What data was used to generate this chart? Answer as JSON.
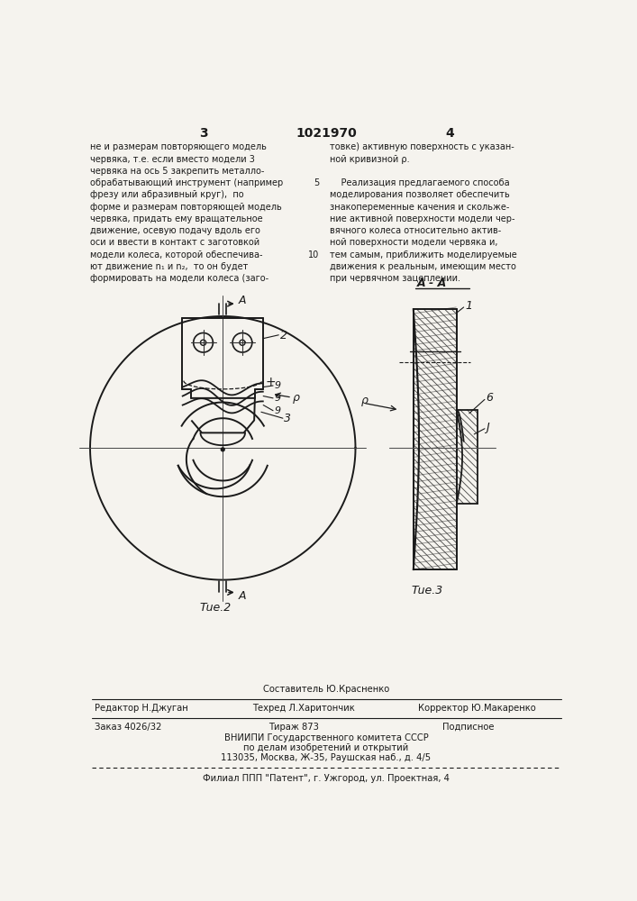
{
  "bg_color": "#f5f3ee",
  "text_color": "#1a1a1a",
  "page_number_left": "3",
  "page_number_center": "1021970",
  "page_number_right": "4",
  "col1_text": [
    "не и размерам повторяющего модель",
    "червяка, т.е. если вместо модели 3",
    "червяка на ось 5 закрепить металло-",
    "обрабатывающий инструмент (например",
    "фрезу или абразивный круг),  по",
    "форме и размерам повторяющей модель",
    "червяка, придать ему вращательное",
    "движение, осевую подачу вдоль его",
    "оси и ввести в контакт с заготовкой",
    "модели колеса, которой обеспечива-",
    "ют движение n₁ и n₂,  то он будет",
    "формировать на модели колеса (заго-"
  ],
  "col2_text": [
    "товке) активную поверхность с указан-",
    "ной кривизной ρ.",
    "",
    "    Реализация предлагаемого способа",
    "моделирования позволяет обеспечить",
    "знакопеременные качения и скольже-",
    "ние активной поверхности модели чер-",
    "вячного колеса относительно актив-",
    "ной поверхности модели червяка и,",
    "тем самым, приближить моделируемые",
    "движения к реальным, имеющим место",
    "при червячном зацеплении."
  ],
  "fig2_label": "Τue.2",
  "fig3_label": "Τue.3",
  "section_label": "A - A",
  "footer_composer": "Составитель Ю.Красненко",
  "footer_editor": "Редактор Н.Джуган",
  "footer_tech": "Техред Л.Харитончик",
  "footer_corrector": "Корректор Ю.Макаренко",
  "footer_order": "Заказ 4026/32",
  "footer_print": "Тираж 873",
  "footer_subscription": "Подписное",
  "footer_org": "ВНИИПИ Государственного комитета СССР",
  "footer_dept": "по делам изобретений и открытий",
  "footer_address": "113035, Москва, Ж-35, Раушская наб., д. 4/5",
  "footer_branch": "Филиал ППП \"Патент\", г. Ужгород, ул. Проектная, 4"
}
